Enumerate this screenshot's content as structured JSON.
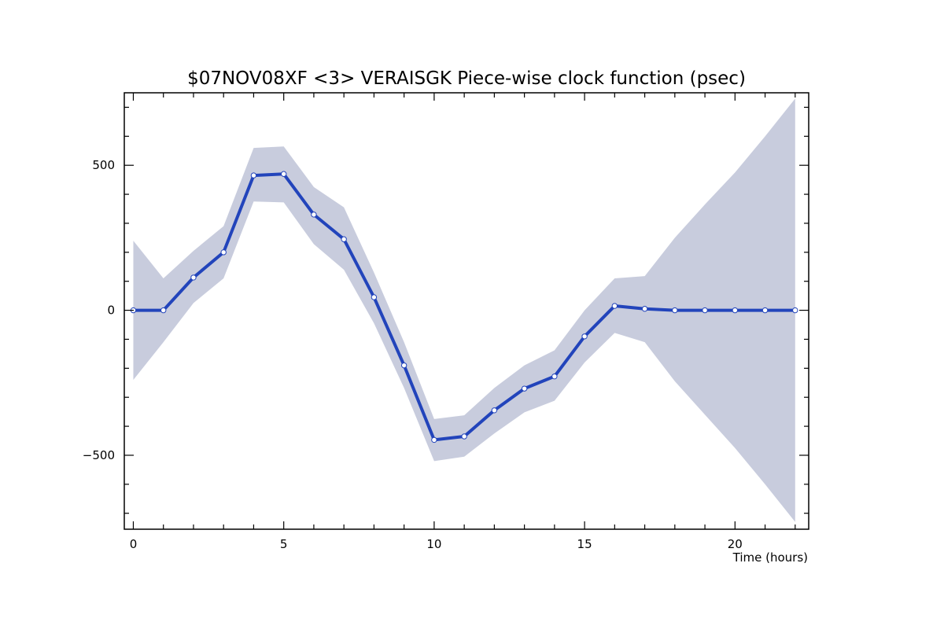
{
  "chart_data": {
    "type": "line",
    "title": "$07NOV08XF <3>  VERAISGK  Piece-wise clock function (psec)",
    "xlabel": "Time (hours)",
    "ylabel": "",
    "xlim": [
      -0.3,
      22.45
    ],
    "ylim": [
      -755,
      750
    ],
    "x_ticks": [
      0,
      5,
      10,
      15,
      20
    ],
    "x_tick_labels": [
      "0",
      "5",
      "10",
      "15",
      "20"
    ],
    "y_ticks": [
      -500,
      0,
      500
    ],
    "y_tick_labels": [
      "−500",
      "0",
      "500"
    ],
    "grid": false,
    "colors": {
      "line": "#2244bb",
      "band": "#c8ccdd",
      "marker_fill": "#ffffff"
    },
    "x": [
      0,
      1,
      2,
      3,
      4,
      5,
      6,
      7,
      8,
      9,
      10,
      11,
      12,
      13,
      14,
      15,
      16,
      17,
      18,
      19,
      20,
      21,
      22
    ],
    "series": [
      {
        "values": [
          0,
          0,
          113,
          200,
          465,
          470,
          330,
          245,
          45,
          -190,
          -447,
          -435,
          -345,
          -270,
          -228,
          -90,
          15,
          5,
          0,
          0,
          0,
          0,
          0
        ],
        "upper": [
          240,
          110,
          205,
          290,
          560,
          565,
          425,
          355,
          130,
          -110,
          -375,
          -362,
          -268,
          -190,
          -138,
          0,
          110,
          118,
          250,
          365,
          475,
          600,
          730
        ],
        "lower": [
          -240,
          -110,
          25,
          110,
          375,
          372,
          228,
          140,
          -45,
          -268,
          -520,
          -505,
          -425,
          -352,
          -312,
          -180,
          -78,
          -110,
          -245,
          -360,
          -475,
          -600,
          -730
        ]
      }
    ]
  }
}
